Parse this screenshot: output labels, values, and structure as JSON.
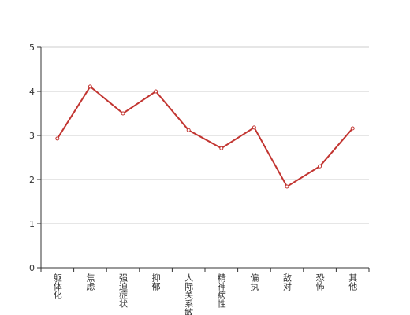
{
  "chart_data": {
    "type": "line",
    "categories": [
      "躯体化",
      "焦虑",
      "强迫症状",
      "抑郁",
      "人际关系敏感",
      "精神病性",
      "偏执",
      "敌对",
      "恐怖",
      "其他"
    ],
    "series": [
      {
        "color": "#c23531",
        "values": [
          2.93,
          4.11,
          3.5,
          4.0,
          3.12,
          2.71,
          3.18,
          1.84,
          2.3,
          3.16
        ]
      }
    ],
    "ylim": [
      0,
      5
    ],
    "yticks": [
      0,
      1,
      2,
      3,
      4,
      5
    ],
    "grid": true
  }
}
